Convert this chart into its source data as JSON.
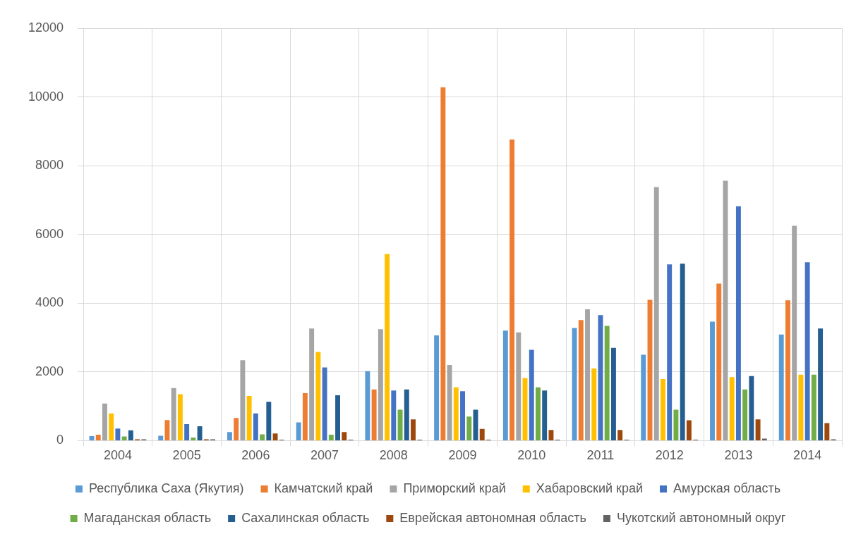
{
  "chart_data": {
    "type": "bar",
    "categories": [
      "2004",
      "2005",
      "2006",
      "2007",
      "2008",
      "2009",
      "2010",
      "2011",
      "2012",
      "2013",
      "2014"
    ],
    "ylim": [
      0,
      12000
    ],
    "yticks": [
      0,
      2000,
      4000,
      6000,
      8000,
      10000,
      12000
    ],
    "grid": true,
    "legend": "bottom",
    "series": [
      {
        "name": "Республика Саха (Якутия)",
        "color": "#5b9bd5",
        "values": [
          130,
          140,
          250,
          530,
          2020,
          3060,
          3200,
          3280,
          2500,
          3460,
          3090
        ]
      },
      {
        "name": "Камчатский край",
        "color": "#ed7d31",
        "values": [
          170,
          600,
          660,
          1380,
          1490,
          10280,
          8760,
          3510,
          4100,
          4570,
          4080
        ]
      },
      {
        "name": "Приморский край",
        "color": "#a5a5a5",
        "values": [
          1080,
          1530,
          2340,
          3260,
          3240,
          2200,
          3150,
          3820,
          7380,
          7560,
          6250
        ]
      },
      {
        "name": "Хабаровский край",
        "color": "#ffc000",
        "values": [
          790,
          1350,
          1300,
          2580,
          5430,
          1550,
          1820,
          2100,
          1790,
          1850,
          1920
        ]
      },
      {
        "name": "Амурская область",
        "color": "#4472c4",
        "values": [
          350,
          480,
          790,
          2130,
          1460,
          1440,
          2640,
          3650,
          5130,
          6820,
          5190
        ]
      },
      {
        "name": "Магаданская область",
        "color": "#70ad47",
        "values": [
          120,
          90,
          180,
          170,
          900,
          700,
          1550,
          3340,
          900,
          1490,
          1920
        ]
      },
      {
        "name": "Сахалинская область",
        "color": "#255e91",
        "values": [
          300,
          420,
          1130,
          1320,
          1490,
          900,
          1460,
          2700,
          5150,
          1880,
          3260
        ]
      },
      {
        "name": "Еврейская автономная область",
        "color": "#9e480e",
        "values": [
          40,
          40,
          210,
          250,
          620,
          340,
          310,
          310,
          590,
          620,
          510
        ]
      },
      {
        "name": "Чукотский автономный округ",
        "color": "#636363",
        "values": [
          40,
          40,
          30,
          30,
          30,
          30,
          30,
          30,
          30,
          60,
          40
        ]
      }
    ]
  }
}
